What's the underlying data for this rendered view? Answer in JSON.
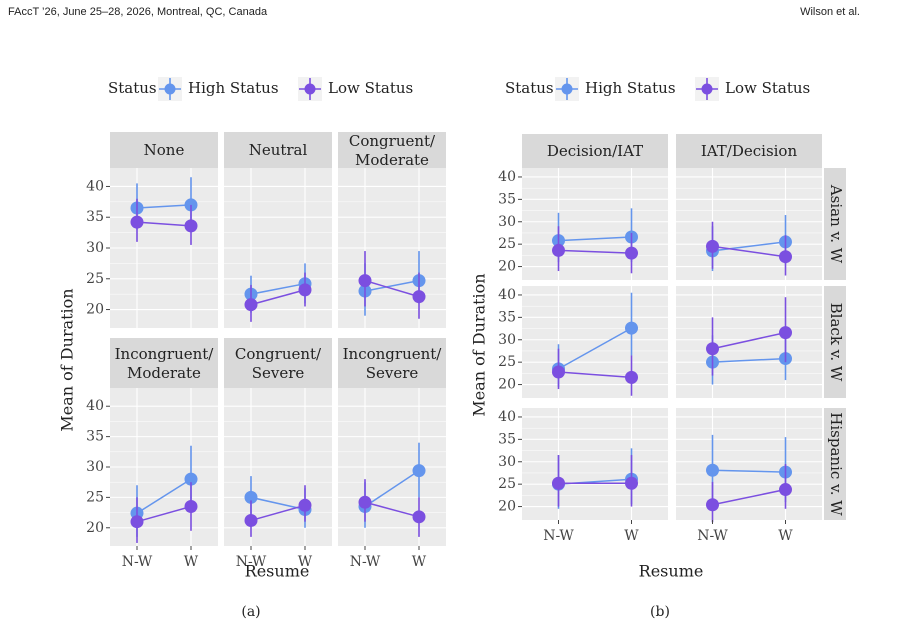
{
  "header": {
    "left": "FAccT ’26, June 25–28, 2026, Montreal, QC, Canada",
    "right": "Wilson et al."
  },
  "colors": {
    "high": "#6495ED",
    "low": "#7B4FE0",
    "strip": "#D9D9D9",
    "panel": "#EBEBEB",
    "grid": "#FFFFFF"
  },
  "chart_data": [
    {
      "type": "scatter",
      "caption": "(a)",
      "xlabel": "Resume",
      "ylabel": "Mean of Duration",
      "legend": {
        "title": "Status",
        "entries": [
          "High Status",
          "Low Status"
        ],
        "position": "top"
      },
      "x_categories": [
        "N-W",
        "W"
      ],
      "ylim": [
        17,
        43
      ],
      "yticks": [
        20,
        25,
        30,
        35,
        40
      ],
      "grid": true,
      "panels": [
        {
          "title": [
            "None"
          ],
          "high": [
            {
              "y": 36.5,
              "lo": 33,
              "hi": 40.5
            },
            {
              "y": 37,
              "lo": 33,
              "hi": 41.5
            }
          ],
          "low": [
            {
              "y": 34.2,
              "lo": 31,
              "hi": 38
            },
            {
              "y": 33.6,
              "lo": 30.5,
              "hi": 37
            }
          ]
        },
        {
          "title": [
            "Neutral"
          ],
          "high": [
            {
              "y": 22.5,
              "lo": 19.5,
              "hi": 25.5
            },
            {
              "y": 24.2,
              "lo": 21,
              "hi": 27.5
            }
          ],
          "low": [
            {
              "y": 20.8,
              "lo": 18,
              "hi": 24
            },
            {
              "y": 23.2,
              "lo": 20.5,
              "hi": 26
            }
          ]
        },
        {
          "title": [
            "Congruent/",
            "Moderate"
          ],
          "high": [
            {
              "y": 23,
              "lo": 19,
              "hi": 27.5
            },
            {
              "y": 24.7,
              "lo": 21,
              "hi": 29.5
            }
          ],
          "low": [
            {
              "y": 24.7,
              "lo": 20.5,
              "hi": 29.5
            },
            {
              "y": 22.1,
              "lo": 18.5,
              "hi": 26
            }
          ]
        },
        {
          "title": [
            "Incongruent/",
            "Moderate"
          ],
          "high": [
            {
              "y": 22.4,
              "lo": 18.5,
              "hi": 27
            },
            {
              "y": 28,
              "lo": 23,
              "hi": 33.5
            }
          ],
          "low": [
            {
              "y": 21,
              "lo": 17.5,
              "hi": 25
            },
            {
              "y": 23.5,
              "lo": 19.5,
              "hi": 27.5
            }
          ]
        },
        {
          "title": [
            "Congruent/",
            "Severe"
          ],
          "high": [
            {
              "y": 25,
              "lo": 21.5,
              "hi": 28.5
            },
            {
              "y": 23,
              "lo": 20,
              "hi": 26.5
            }
          ],
          "low": [
            {
              "y": 21.2,
              "lo": 18.5,
              "hi": 24.5
            },
            {
              "y": 23.7,
              "lo": 21,
              "hi": 27
            }
          ]
        },
        {
          "title": [
            "Incongruent/",
            "Severe"
          ],
          "high": [
            {
              "y": 23.5,
              "lo": 20,
              "hi": 27.5
            },
            {
              "y": 29.4,
              "lo": 25,
              "hi": 34
            }
          ],
          "low": [
            {
              "y": 24.2,
              "lo": 21,
              "hi": 28
            },
            {
              "y": 21.8,
              "lo": 18.5,
              "hi": 25
            }
          ]
        }
      ]
    },
    {
      "type": "scatter",
      "caption": "(b)",
      "xlabel": "Resume",
      "ylabel": "Mean of Duration",
      "legend": {
        "title": "Status",
        "entries": [
          "High Status",
          "Low Status"
        ],
        "position": "top"
      },
      "x_categories": [
        "N-W",
        "W"
      ],
      "ylim": [
        17,
        42
      ],
      "yticks": [
        20,
        25,
        30,
        35,
        40
      ],
      "grid": true,
      "col_titles": [
        "Decision/IAT",
        "IAT/Decision"
      ],
      "row_titles": [
        "Asian v. W",
        "Black v. W",
        "Hispanic v. W"
      ],
      "panels": [
        {
          "row": 0,
          "col": 0,
          "high": [
            {
              "y": 25.8,
              "lo": 21,
              "hi": 32
            },
            {
              "y": 26.6,
              "lo": 21,
              "hi": 33
            }
          ],
          "low": [
            {
              "y": 23.6,
              "lo": 19,
              "hi": 29
            },
            {
              "y": 23,
              "lo": 18.5,
              "hi": 27.5
            }
          ]
        },
        {
          "row": 0,
          "col": 1,
          "high": [
            {
              "y": 23.5,
              "lo": 19,
              "hi": 29
            },
            {
              "y": 25.5,
              "lo": 20.5,
              "hi": 31.5
            }
          ],
          "low": [
            {
              "y": 24.5,
              "lo": 19.5,
              "hi": 30
            },
            {
              "y": 22.2,
              "lo": 18,
              "hi": 27
            }
          ]
        },
        {
          "row": 1,
          "col": 0,
          "high": [
            {
              "y": 23.5,
              "lo": 19.5,
              "hi": 29
            },
            {
              "y": 32.6,
              "lo": 26.5,
              "hi": 40.5
            }
          ],
          "low": [
            {
              "y": 22.8,
              "lo": 19,
              "hi": 28
            },
            {
              "y": 21.6,
              "lo": 17.5,
              "hi": 26.5
            }
          ]
        },
        {
          "row": 1,
          "col": 1,
          "high": [
            {
              "y": 25,
              "lo": 20,
              "hi": 31
            },
            {
              "y": 25.8,
              "lo": 21,
              "hi": 31.5
            }
          ],
          "low": [
            {
              "y": 28,
              "lo": 22,
              "hi": 35
            },
            {
              "y": 31.6,
              "lo": 25,
              "hi": 39.5
            }
          ]
        },
        {
          "row": 2,
          "col": 0,
          "high": [
            {
              "y": 25,
              "lo": 19.5,
              "hi": 31.5
            },
            {
              "y": 26.1,
              "lo": 20.5,
              "hi": 33
            }
          ],
          "low": [
            {
              "y": 25.2,
              "lo": 20,
              "hi": 31.5
            },
            {
              "y": 25.2,
              "lo": 20,
              "hi": 31.5
            }
          ]
        },
        {
          "row": 2,
          "col": 1,
          "high": [
            {
              "y": 28.1,
              "lo": 21,
              "hi": 36
            },
            {
              "y": 27.7,
              "lo": 21,
              "hi": 35.5
            }
          ],
          "low": [
            {
              "y": 20.4,
              "lo": 16.5,
              "hi": 25.5
            },
            {
              "y": 23.8,
              "lo": 19.5,
              "hi": 29.5
            }
          ]
        }
      ]
    }
  ]
}
